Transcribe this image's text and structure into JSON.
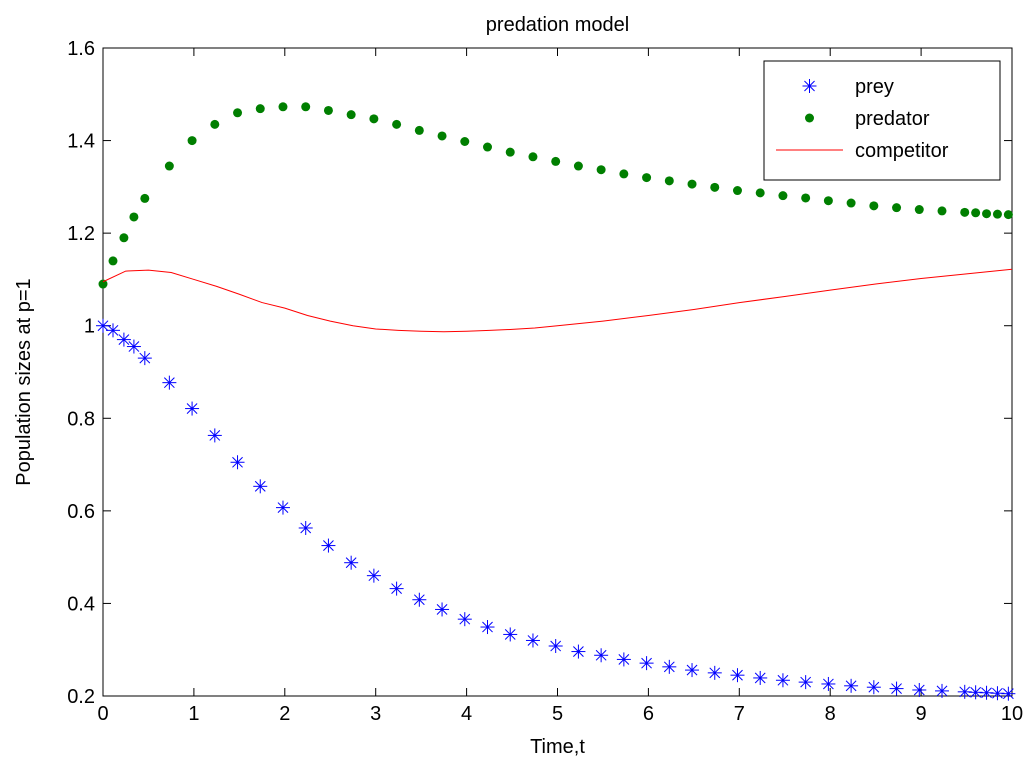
{
  "chart_data": {
    "type": "line",
    "title": "predation model",
    "xlabel": "Time,t",
    "ylabel": "Population sizes at p=1",
    "xlim": [
      0,
      10
    ],
    "ylim": [
      0.2,
      1.6
    ],
    "xticks": [
      "0",
      "1",
      "2",
      "3",
      "4",
      "5",
      "6",
      "7",
      "8",
      "9",
      "10"
    ],
    "yticks": [
      "0.2",
      "0.4",
      "0.6",
      "0.8",
      "1",
      "1.2",
      "1.4",
      "1.6"
    ],
    "grid": false,
    "legend_position": "top-right",
    "series": [
      {
        "name": "prey",
        "marker": "asterisk",
        "line": "none",
        "color": "#0000ff",
        "x": [
          0,
          0.11,
          0.23,
          0.34,
          0.46,
          0.73,
          0.98,
          1.23,
          1.48,
          1.73,
          1.98,
          2.23,
          2.48,
          2.73,
          2.98,
          3.23,
          3.48,
          3.73,
          3.98,
          4.23,
          4.48,
          4.73,
          4.98,
          5.23,
          5.48,
          5.73,
          5.98,
          6.23,
          6.48,
          6.73,
          6.98,
          7.23,
          7.48,
          7.73,
          7.98,
          8.23,
          8.48,
          8.73,
          8.98,
          9.23,
          9.48,
          9.6,
          9.72,
          9.84,
          9.96
        ],
        "y": [
          1.0,
          0.99,
          0.97,
          0.955,
          0.93,
          0.877,
          0.821,
          0.763,
          0.705,
          0.653,
          0.607,
          0.563,
          0.525,
          0.488,
          0.46,
          0.432,
          0.408,
          0.387,
          0.366,
          0.349,
          0.333,
          0.32,
          0.308,
          0.296,
          0.288,
          0.279,
          0.271,
          0.263,
          0.256,
          0.25,
          0.245,
          0.239,
          0.234,
          0.23,
          0.226,
          0.222,
          0.219,
          0.216,
          0.213,
          0.211,
          0.209,
          0.208,
          0.207,
          0.206,
          0.205
        ]
      },
      {
        "name": "predator",
        "marker": "dot",
        "line": "none",
        "color": "#007f00",
        "x": [
          0,
          0.11,
          0.23,
          0.34,
          0.46,
          0.73,
          0.98,
          1.23,
          1.48,
          1.73,
          1.98,
          2.23,
          2.48,
          2.73,
          2.98,
          3.23,
          3.48,
          3.73,
          3.98,
          4.23,
          4.48,
          4.73,
          4.98,
          5.23,
          5.48,
          5.73,
          5.98,
          6.23,
          6.48,
          6.73,
          6.98,
          7.23,
          7.48,
          7.73,
          7.98,
          8.23,
          8.48,
          8.73,
          8.98,
          9.23,
          9.48,
          9.6,
          9.72,
          9.84,
          9.96
        ],
        "y": [
          1.09,
          1.14,
          1.19,
          1.235,
          1.275,
          1.345,
          1.4,
          1.435,
          1.46,
          1.469,
          1.473,
          1.473,
          1.465,
          1.456,
          1.447,
          1.435,
          1.422,
          1.41,
          1.398,
          1.386,
          1.375,
          1.365,
          1.355,
          1.345,
          1.337,
          1.328,
          1.32,
          1.313,
          1.306,
          1.299,
          1.292,
          1.287,
          1.281,
          1.276,
          1.27,
          1.265,
          1.259,
          1.255,
          1.251,
          1.248,
          1.245,
          1.244,
          1.242,
          1.241,
          1.24
        ]
      },
      {
        "name": "competitor",
        "marker": "none",
        "line": "solid",
        "color": "#ff0000",
        "x": [
          0,
          0.25,
          0.5,
          0.75,
          1.0,
          1.25,
          1.5,
          1.75,
          2.0,
          2.25,
          2.5,
          2.75,
          3.0,
          3.25,
          3.5,
          3.75,
          4.0,
          4.25,
          4.5,
          4.75,
          5.0,
          5.5,
          6.0,
          6.5,
          7.0,
          7.5,
          8.0,
          8.5,
          9.0,
          9.5,
          10.0
        ],
        "y": [
          1.095,
          1.118,
          1.12,
          1.115,
          1.1,
          1.085,
          1.068,
          1.05,
          1.038,
          1.022,
          1.01,
          1.0,
          0.993,
          0.99,
          0.988,
          0.987,
          0.988,
          0.99,
          0.992,
          0.995,
          1.0,
          1.01,
          1.022,
          1.035,
          1.05,
          1.063,
          1.077,
          1.09,
          1.102,
          1.112,
          1.122
        ]
      }
    ]
  }
}
